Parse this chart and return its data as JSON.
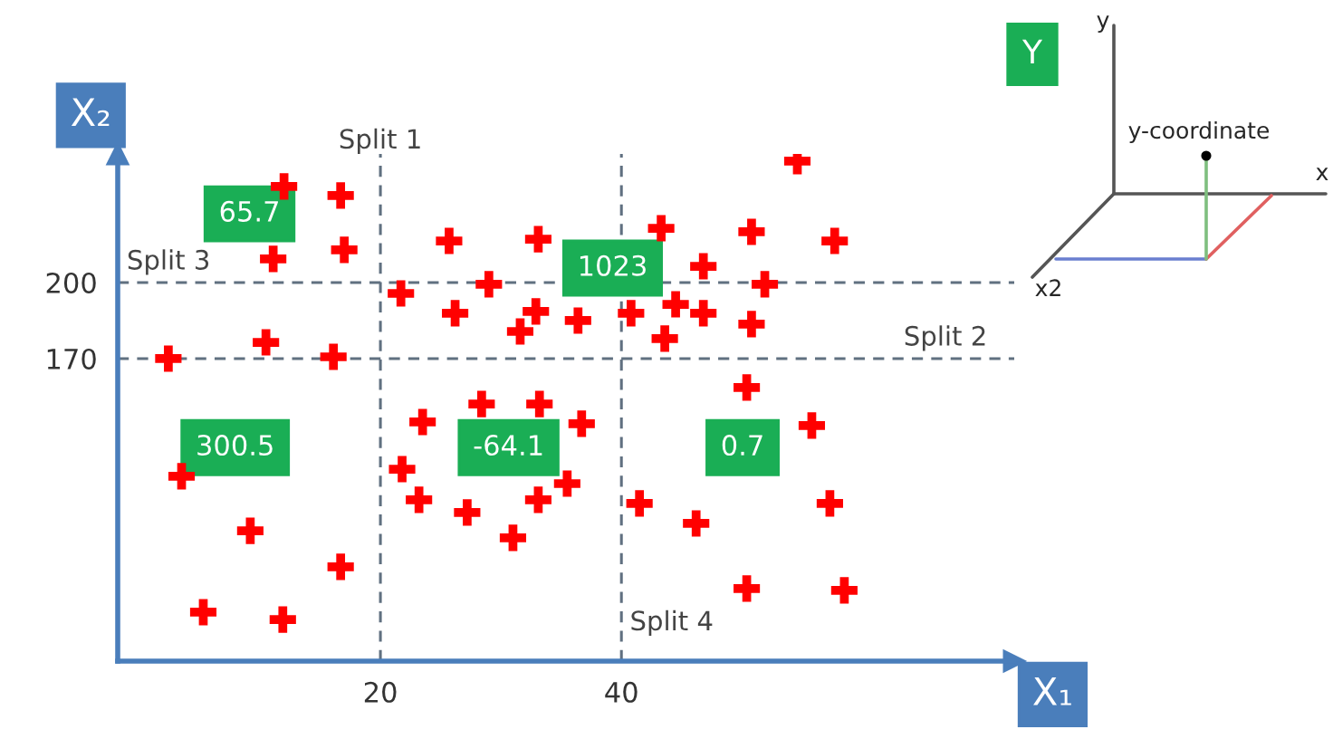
{
  "chart_data": {
    "type": "scatter",
    "xlabel": "X₁",
    "ylabel": "X₂",
    "x": [
      12.0,
      16.7,
      11.1,
      17.0,
      2.4,
      10.5,
      16.1,
      3.5,
      9.2,
      16.7,
      5.3,
      11.9,
      54.6,
      25.7,
      33.1,
      43.3,
      50.8,
      57.7,
      21.7,
      29.0,
      46.8,
      51.9,
      26.2,
      32.9,
      31.6,
      36.4,
      40.8,
      44.5,
      46.8,
      43.6,
      50.8,
      28.4,
      33.2,
      23.5,
      36.7,
      21.8,
      35.5,
      23.2,
      27.2,
      33.1,
      31.0,
      50.4,
      55.8,
      41.5,
      46.2,
      57.3,
      50.4,
      58.5
    ],
    "series": [
      {
        "color": "#ff0000",
        "values": [
          237.9,
          234.3,
          209.3,
          212.9,
          170.0,
          176.4,
          170.7,
          123.6,
          102.1,
          87.9,
          70.0,
          67.1,
          247.9,
          216.4,
          217.1,
          221.4,
          220.0,
          216.4,
          195.7,
          199.3,
          206.4,
          199.3,
          187.9,
          188.6,
          180.7,
          185.0,
          187.9,
          191.4,
          187.9,
          177.9,
          183.6,
          152.1,
          152.1,
          145.0,
          144.3,
          126.4,
          120.7,
          114.3,
          109.3,
          114.3,
          99.3,
          158.6,
          143.6,
          112.9,
          105.0,
          112.9,
          79.3,
          78.6
        ]
      }
    ],
    "marker": "cross",
    "xlim": [
      -1.8,
      72.6
    ],
    "ylim": [
      50.7,
      250.7
    ],
    "xticks": [
      20,
      40
    ],
    "yticks": [
      170,
      200
    ],
    "grid": false,
    "ref_lines": [
      {
        "axis": "x",
        "value": 20,
        "label": "Split 1",
        "line_style": "dashed"
      },
      {
        "axis": "y",
        "value": 170,
        "label": "Split 2",
        "line_style": "dashed"
      },
      {
        "axis": "y",
        "value": 200,
        "label": "Split 3",
        "line_style": "dashed"
      },
      {
        "axis": "x",
        "value": 40,
        "label": "Split 4",
        "line_style": "dashed"
      }
    ],
    "annotations": [
      "65.7",
      "1023",
      "300.5",
      "-64.1",
      "0.7",
      "Y",
      "y",
      "y-coordinate",
      "x",
      "x2"
    ]
  }
}
